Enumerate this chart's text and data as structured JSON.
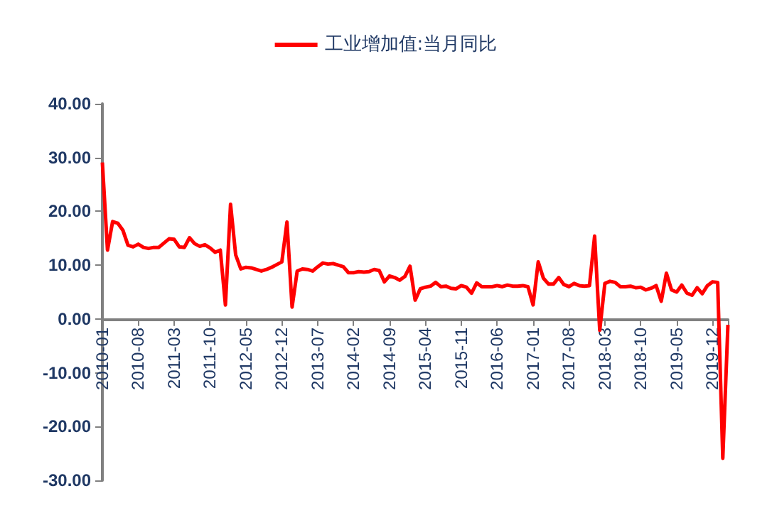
{
  "chart_data": {
    "type": "line",
    "categories": [
      "2010-01",
      null,
      null,
      null,
      null,
      null,
      null,
      "2010-08",
      null,
      null,
      null,
      null,
      null,
      null,
      "2011-03",
      null,
      null,
      null,
      null,
      null,
      null,
      "2011-10",
      null,
      null,
      null,
      null,
      null,
      null,
      "2012-05",
      null,
      null,
      null,
      null,
      null,
      null,
      "2012-12",
      null,
      null,
      null,
      null,
      null,
      null,
      "2013-07",
      null,
      null,
      null,
      null,
      null,
      null,
      "2014-02",
      null,
      null,
      null,
      null,
      null,
      null,
      "2014-09",
      null,
      null,
      null,
      null,
      null,
      null,
      "2015-04",
      null,
      null,
      null,
      null,
      null,
      null,
      "2015-11",
      null,
      null,
      null,
      null,
      null,
      null,
      "2016-06",
      null,
      null,
      null,
      null,
      null,
      null,
      "2017-01",
      null,
      null,
      null,
      null,
      null,
      null,
      "2017-08",
      null,
      null,
      null,
      null,
      null,
      null,
      "2018-03",
      null,
      null,
      null,
      null,
      null,
      null,
      "2018-10",
      null,
      null,
      null,
      null,
      null,
      null,
      "2019-05",
      null,
      null,
      null,
      null,
      null,
      null,
      "2019-12",
      null,
      null,
      null
    ],
    "series": [
      {
        "name": "工业增加值:当月同比",
        "color": "#ff0000",
        "values": [
          29.1,
          12.8,
          18.1,
          17.8,
          16.5,
          13.7,
          13.4,
          13.9,
          13.3,
          13.1,
          13.3,
          13.3,
          14.1,
          14.9,
          14.8,
          13.4,
          13.3,
          15.1,
          14.0,
          13.5,
          13.8,
          13.2,
          12.4,
          12.8,
          2.6,
          21.3,
          11.9,
          9.3,
          9.6,
          9.5,
          9.2,
          8.9,
          9.2,
          9.6,
          10.1,
          10.6,
          18.0,
          2.2,
          8.9,
          9.3,
          9.2,
          8.9,
          9.7,
          10.4,
          10.2,
          10.3,
          10.0,
          9.7,
          8.6,
          8.6,
          8.8,
          8.7,
          8.8,
          9.2,
          9.0,
          6.9,
          8.0,
          7.7,
          7.2,
          7.9,
          9.8,
          3.5,
          5.6,
          5.9,
          6.1,
          6.8,
          6.0,
          6.1,
          5.7,
          5.6,
          6.2,
          5.9,
          4.8,
          6.7,
          6.0,
          6.0,
          6.0,
          6.2,
          6.0,
          6.3,
          6.1,
          6.1,
          6.2,
          6.0,
          2.6,
          10.6,
          7.6,
          6.5,
          6.5,
          7.7,
          6.4,
          6.0,
          6.6,
          6.2,
          6.1,
          6.2,
          15.4,
          -2.1,
          6.6,
          7.0,
          6.8,
          6.0,
          6.0,
          6.1,
          5.8,
          5.9,
          5.4,
          5.7,
          6.2,
          3.3,
          8.5,
          5.4,
          5.0,
          6.3,
          4.8,
          4.4,
          5.8,
          4.7,
          6.2,
          6.9,
          6.8,
          -25.9,
          -1.1
        ]
      }
    ],
    "ylim": [
      -30,
      40
    ],
    "yticks": [
      {
        "value": -30,
        "label": "-30.00"
      },
      {
        "value": -20,
        "label": "-20.00"
      },
      {
        "value": -10,
        "label": "-10.00"
      },
      {
        "value": 0,
        "label": "0.00"
      },
      {
        "value": 10,
        "label": "10.00"
      },
      {
        "value": 20,
        "label": "20.00"
      },
      {
        "value": 30,
        "label": "30.00"
      },
      {
        "value": 40,
        "label": "40.00"
      }
    ],
    "grid": false,
    "legend": "top",
    "marker": "none",
    "line_style": "solid"
  }
}
